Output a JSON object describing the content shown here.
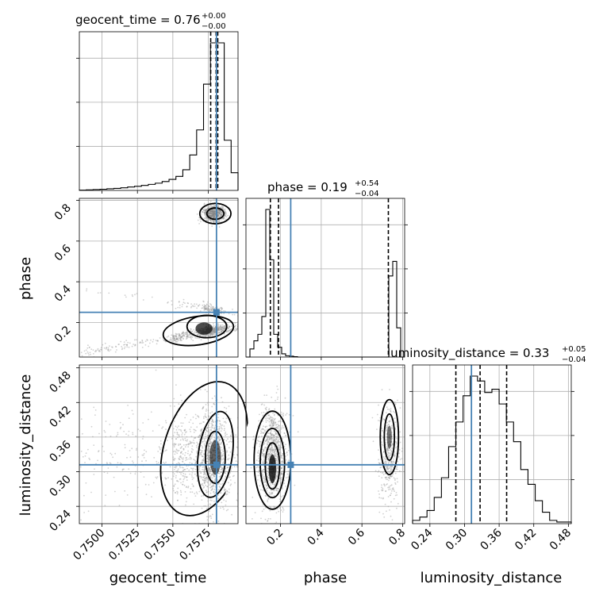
{
  "chart_data": {
    "type": "corner",
    "parameters": [
      "geocent_time",
      "phase",
      "luminosity_distance"
    ],
    "truths": {
      "geocent_time": 0.75808,
      "phase": 0.25,
      "luminosity_distance": 0.312
    },
    "titles": [
      {
        "param": "geocent_time",
        "text": "geocent_time = 0.76",
        "upper": "+0.00",
        "lower": "−0.00"
      },
      {
        "param": "phase",
        "text": "phase = 0.19",
        "upper": "+0.54",
        "lower": "−0.04"
      },
      {
        "param": "luminosity_distance",
        "text": "luminosity_distance = 0.33",
        "upper": "+0.05",
        "lower": "−0.04"
      }
    ],
    "quantiles": {
      "geocent_time": [
        0.75767,
        0.75805,
        0.75817
      ],
      "phase": [
        0.15,
        0.19,
        0.73
      ],
      "luminosity_distance": [
        0.285,
        0.327,
        0.373
      ]
    },
    "ranges": {
      "geocent_time": [
        0.7484,
        0.7596
      ],
      "phase": [
        0.03,
        0.81
      ],
      "luminosity_distance": [
        0.21,
        0.485
      ]
    },
    "ticks": {
      "geocent_time": {
        "values": [
          0.75,
          0.7525,
          0.755,
          0.7575
        ],
        "labels": [
          "0.7500",
          "0.7525",
          "0.7550",
          "0.7575"
        ]
      },
      "phase": {
        "values": [
          0.2,
          0.4,
          0.6,
          0.8
        ],
        "labels": [
          "0.2",
          "0.4",
          "0.6",
          "0.8"
        ]
      },
      "luminosity_distance": {
        "values": [
          0.24,
          0.3,
          0.36,
          0.42,
          0.48
        ],
        "labels": [
          "0.24",
          "0.30",
          "0.36",
          "0.42",
          "0.48"
        ]
      }
    },
    "histograms": {
      "geocent_time": [
        0.2,
        0.4,
        0.6,
        0.8,
        1.1,
        1.4,
        1.8,
        2.3,
        2.8,
        3.4,
        4.1,
        4.9,
        6,
        7.5,
        9.5,
        14,
        24,
        41,
        72,
        100,
        100,
        34,
        12
      ],
      "phase": [
        0,
        5,
        10,
        14,
        25,
        91,
        60,
        14,
        6,
        2,
        0.8,
        0.5,
        0.2,
        0,
        0,
        0,
        0,
        0,
        0,
        0,
        0,
        0,
        0,
        0,
        0,
        0,
        0,
        0,
        0,
        0,
        0,
        0,
        0,
        0,
        0,
        0,
        50,
        59,
        18,
        0
      ],
      "luminosity_distance": [
        2,
        4,
        8,
        16,
        28,
        47,
        62,
        78,
        90,
        87,
        80,
        82,
        73,
        62,
        50,
        33,
        24,
        14,
        7,
        2,
        1,
        1
      ]
    },
    "grid": true
  }
}
